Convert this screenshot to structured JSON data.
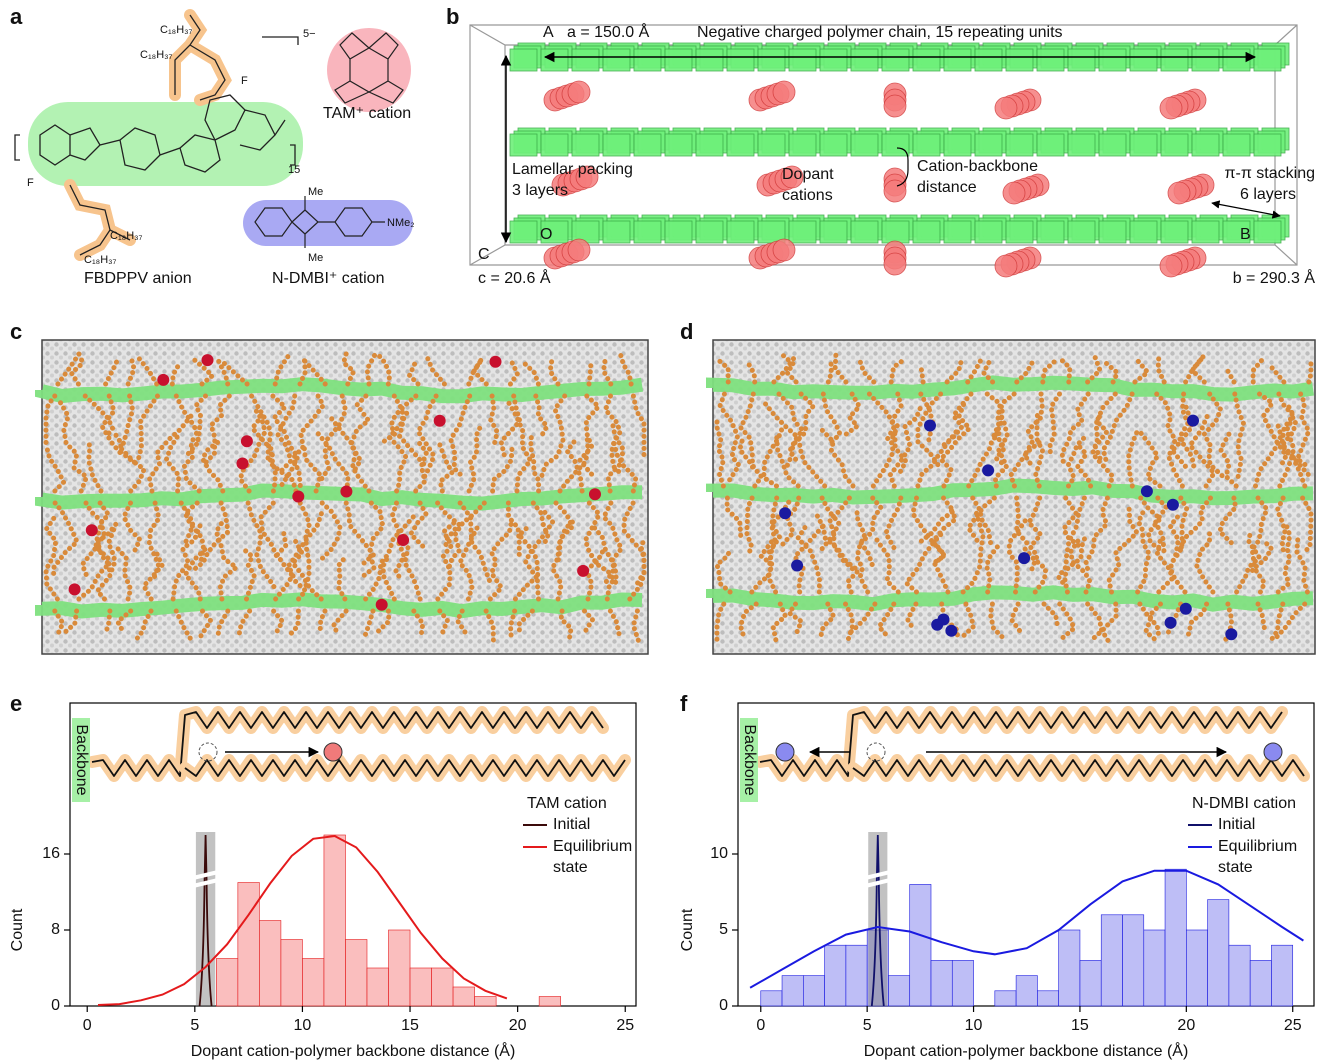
{
  "panel_labels": [
    "a",
    "b",
    "c",
    "d",
    "e",
    "f"
  ],
  "panel_a": {
    "anion_label": "FBDPPV anion",
    "tam_label": "TAM⁺ cation",
    "dmbi_label": "N-DMBI⁺ cation",
    "repeat": "15",
    "charge": "5−",
    "side_chain": "C₁₈H₃₇",
    "fluorine": "F",
    "methyl": "Me",
    "dimethylamino": "NMe₂"
  },
  "panel_b": {
    "corner_a": "A",
    "a_length": "a = 150.0 Å",
    "chain_label": "Negative charged polymer chain, 15 repeating units",
    "lamellar_label": [
      "Lamellar packing",
      "3 layers"
    ],
    "dopant_label": [
      "Dopant",
      "cations"
    ],
    "distance_label": [
      "Cation-backbone",
      "distance"
    ],
    "stacking_label": [
      "π-π stacking",
      "6 layers"
    ],
    "corner_o": "O",
    "corner_b": "B",
    "corner_c": "C",
    "c_length": "c = 20.6 Å",
    "b_length": "b = 290.3 Å"
  },
  "chart_data": [
    {
      "type": "histogram",
      "legend_title": "TAM cation",
      "inset_label": "Backbone",
      "xlabel": "Dopant cation-polymer backbone distance (Å)",
      "ylabel": "Count",
      "bins": [
        6,
        7,
        8,
        9,
        10,
        11,
        12,
        13,
        14,
        15,
        16,
        17,
        18,
        19,
        20,
        21,
        22
      ],
      "values": [
        5,
        13,
        9,
        7,
        5,
        18,
        7,
        4,
        8,
        4,
        4,
        2,
        1,
        0,
        0,
        1
      ],
      "color": "#f9b3b3",
      "fit": {
        "x": [
          0.5,
          1.5,
          2.5,
          3.5,
          4.5,
          5.5,
          6.5,
          7.5,
          8.5,
          9.5,
          10.5,
          11.5,
          12.5,
          13.5,
          14.5,
          15.5,
          16.5,
          17.5,
          18.5,
          19.5
        ],
        "values": [
          0.1,
          0.2,
          0.6,
          1.2,
          2.3,
          4.1,
          6.5,
          9.6,
          12.9,
          15.8,
          17.6,
          17.9,
          16.7,
          14.1,
          10.9,
          7.7,
          5.0,
          2.9,
          1.6,
          0.8
        ]
      },
      "series": [
        {
          "name": "Initial",
          "color": "#3b0a0a"
        },
        {
          "name": "Equilibrium state",
          "color": "#e41a1c"
        }
      ],
      "xlim": [
        -0.8,
        25.5
      ],
      "ylim": [
        0,
        19
      ],
      "xticks": [
        0,
        5,
        10,
        15,
        20,
        25
      ],
      "yticks": [
        0,
        8,
        16
      ]
    },
    {
      "type": "histogram",
      "legend_title": "N-DMBI cation",
      "inset_label": "Backbone",
      "xlabel": "Dopant cation-polymer backbone distance (Å)",
      "ylabel": "Count",
      "bins": [
        0,
        1,
        2,
        3,
        4,
        5,
        6,
        7,
        8,
        9,
        10,
        11,
        12,
        13,
        14,
        15,
        16,
        17,
        18,
        19,
        20,
        21,
        22,
        23,
        24,
        25
      ],
      "values": [
        1,
        2,
        2,
        4,
        4,
        5,
        2,
        8,
        3,
        3,
        0,
        1,
        2,
        1,
        5,
        3,
        6,
        6,
        5,
        9,
        5,
        7,
        4,
        3,
        4
      ],
      "color": "#b3b3f5",
      "fit": {
        "x": [
          -0.5,
          1,
          2.5,
          4,
          5.5,
          7,
          8.5,
          10,
          11,
          12.5,
          14,
          15.5,
          17,
          18.5,
          20,
          21.5,
          23,
          24.5,
          25.5
        ],
        "values": [
          1.2,
          2.4,
          3.6,
          4.7,
          5.2,
          4.9,
          4.2,
          3.6,
          3.4,
          3.8,
          5.0,
          6.7,
          8.2,
          8.9,
          8.9,
          8.0,
          6.6,
          5.2,
          4.3
        ]
      },
      "series": [
        {
          "name": "Initial",
          "color": "#10106a"
        },
        {
          "name": "Equilibrium state",
          "color": "#1a1ae0"
        }
      ],
      "xlim": [
        -1.07,
        26
      ],
      "ylim": [
        0,
        11.5
      ],
      "xticks": [
        0,
        5,
        10,
        15,
        20,
        25
      ],
      "yticks": [
        0,
        5,
        10
      ]
    }
  ]
}
